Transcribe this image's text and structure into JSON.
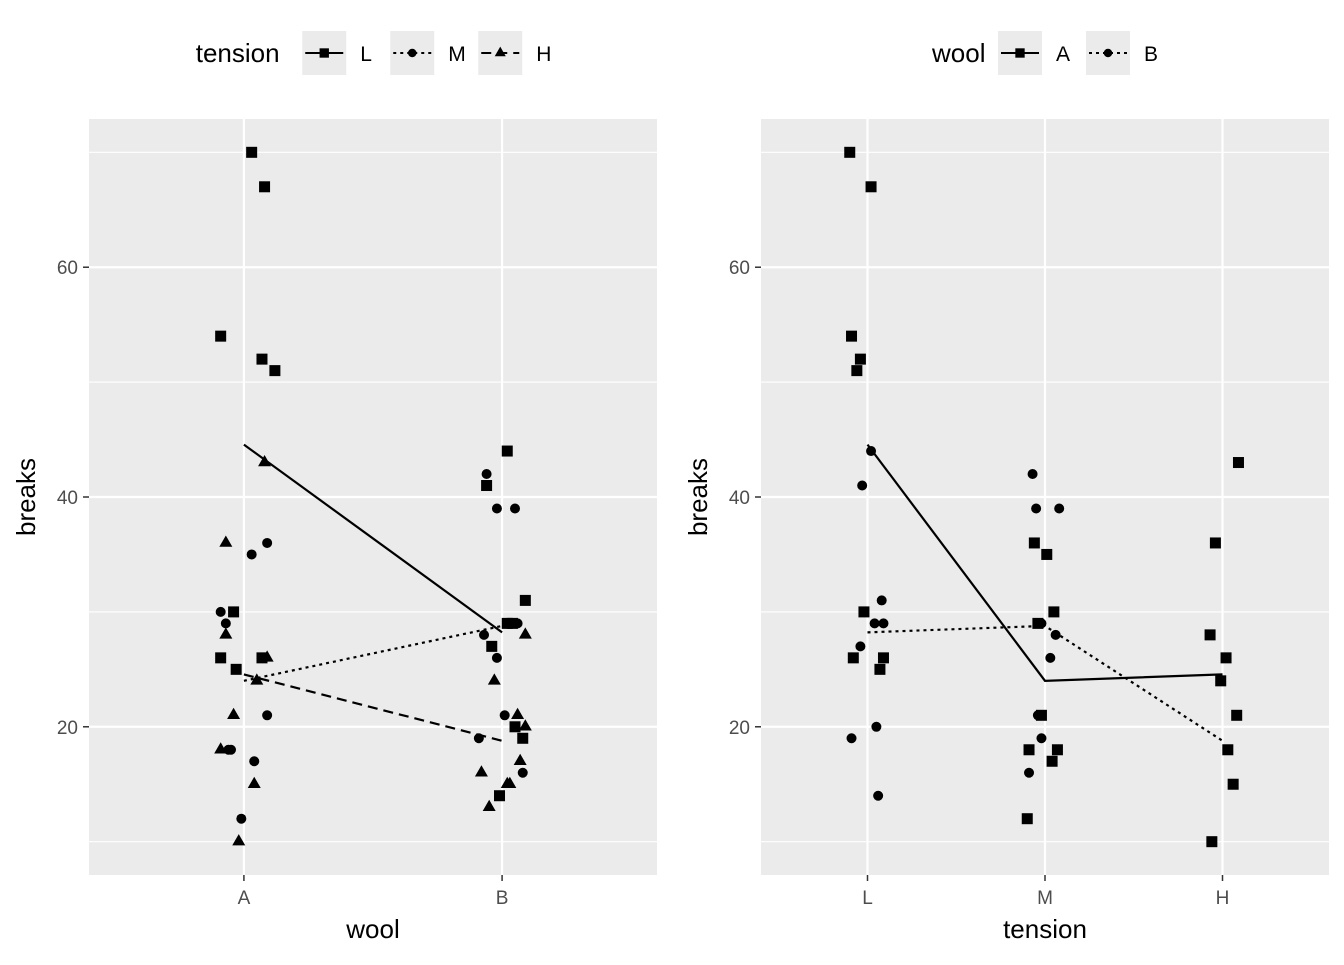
{
  "chart_data": [
    {
      "type": "scatter",
      "title": "",
      "xlabel": "wool",
      "ylabel": "breaks",
      "categories": [
        "A",
        "B"
      ],
      "ylim": [
        7.1,
        72.9
      ],
      "yticks": [
        20,
        40,
        60
      ],
      "grid": true,
      "legend": {
        "title": "tension",
        "placement": "top",
        "entries": [
          "L",
          "M",
          "H"
        ]
      },
      "series": [
        {
          "name": "L",
          "marker": "square",
          "linestyle": "solid",
          "means": [
            44.56,
            28.22
          ],
          "points": [
            {
              "x": "A",
              "dx": -0.09,
              "y": 26
            },
            {
              "x": "A",
              "dx": -0.04,
              "y": 30
            },
            {
              "x": "A",
              "dx": -0.09,
              "y": 54
            },
            {
              "x": "A",
              "dx": -0.03,
              "y": 25
            },
            {
              "x": "A",
              "dx": 0.03,
              "y": 70
            },
            {
              "x": "A",
              "dx": 0.07,
              "y": 52
            },
            {
              "x": "A",
              "dx": 0.12,
              "y": 51
            },
            {
              "x": "A",
              "dx": 0.07,
              "y": 26
            },
            {
              "x": "A",
              "dx": 0.08,
              "y": 67
            },
            {
              "x": "B",
              "dx": -0.04,
              "y": 27
            },
            {
              "x": "B",
              "dx": -0.01,
              "y": 14
            },
            {
              "x": "B",
              "dx": 0.04,
              "y": 29
            },
            {
              "x": "B",
              "dx": 0.08,
              "y": 19
            },
            {
              "x": "B",
              "dx": 0.02,
              "y": 29
            },
            {
              "x": "B",
              "dx": 0.09,
              "y": 31
            },
            {
              "x": "B",
              "dx": -0.06,
              "y": 41
            },
            {
              "x": "B",
              "dx": 0.05,
              "y": 20
            },
            {
              "x": "B",
              "dx": 0.02,
              "y": 44
            }
          ]
        },
        {
          "name": "M",
          "marker": "circle",
          "linestyle": "dotted",
          "means": [
            24.0,
            28.78
          ],
          "points": [
            {
              "x": "A",
              "dx": -0.05,
              "y": 18
            },
            {
              "x": "A",
              "dx": 0.09,
              "y": 21
            },
            {
              "x": "A",
              "dx": -0.07,
              "y": 29
            },
            {
              "x": "A",
              "dx": 0.04,
              "y": 17
            },
            {
              "x": "A",
              "dx": -0.01,
              "y": 12
            },
            {
              "x": "A",
              "dx": -0.06,
              "y": 18
            },
            {
              "x": "A",
              "dx": 0.03,
              "y": 35
            },
            {
              "x": "A",
              "dx": -0.09,
              "y": 30
            },
            {
              "x": "A",
              "dx": 0.09,
              "y": 36
            },
            {
              "x": "B",
              "dx": -0.06,
              "y": 42
            },
            {
              "x": "B",
              "dx": -0.02,
              "y": 26
            },
            {
              "x": "B",
              "dx": -0.09,
              "y": 19
            },
            {
              "x": "B",
              "dx": 0.08,
              "y": 16
            },
            {
              "x": "B",
              "dx": -0.02,
              "y": 39
            },
            {
              "x": "B",
              "dx": -0.07,
              "y": 28
            },
            {
              "x": "B",
              "dx": 0.01,
              "y": 21
            },
            {
              "x": "B",
              "dx": 0.05,
              "y": 39
            },
            {
              "x": "B",
              "dx": 0.06,
              "y": 29
            }
          ]
        },
        {
          "name": "H",
          "marker": "triangle",
          "linestyle": "dashed",
          "means": [
            24.56,
            18.78
          ],
          "points": [
            {
              "x": "A",
              "dx": -0.07,
              "y": 36
            },
            {
              "x": "A",
              "dx": -0.04,
              "y": 21
            },
            {
              "x": "A",
              "dx": 0.05,
              "y": 24
            },
            {
              "x": "A",
              "dx": -0.09,
              "y": 18
            },
            {
              "x": "A",
              "dx": -0.02,
              "y": 10
            },
            {
              "x": "A",
              "dx": 0.08,
              "y": 43
            },
            {
              "x": "A",
              "dx": -0.07,
              "y": 28
            },
            {
              "x": "A",
              "dx": 0.04,
              "y": 15
            },
            {
              "x": "A",
              "dx": 0.09,
              "y": 26
            },
            {
              "x": "B",
              "dx": 0.09,
              "y": 20
            },
            {
              "x": "B",
              "dx": 0.06,
              "y": 21
            },
            {
              "x": "B",
              "dx": -0.03,
              "y": 24
            },
            {
              "x": "B",
              "dx": 0.07,
              "y": 17
            },
            {
              "x": "B",
              "dx": -0.05,
              "y": 13
            },
            {
              "x": "B",
              "dx": 0.03,
              "y": 15
            },
            {
              "x": "B",
              "dx": 0.02,
              "y": 15
            },
            {
              "x": "B",
              "dx": -0.08,
              "y": 16
            },
            {
              "x": "B",
              "dx": 0.09,
              "y": 28
            }
          ]
        }
      ]
    },
    {
      "type": "scatter",
      "title": "",
      "xlabel": "tension",
      "ylabel": "breaks",
      "categories": [
        "L",
        "M",
        "H"
      ],
      "ylim": [
        7.1,
        72.9
      ],
      "yticks": [
        20,
        40,
        60
      ],
      "grid": true,
      "legend": {
        "title": "wool",
        "placement": "top",
        "entries": [
          "A",
          "B"
        ]
      },
      "series": [
        {
          "name": "A",
          "marker": "square",
          "linestyle": "solid",
          "means": [
            44.56,
            24.0,
            24.56
          ],
          "points": [
            {
              "x": "L",
              "dx": -0.08,
              "y": 26
            },
            {
              "x": "L",
              "dx": -0.02,
              "y": 30
            },
            {
              "x": "L",
              "dx": -0.09,
              "y": 54
            },
            {
              "x": "L",
              "dx": 0.07,
              "y": 25
            },
            {
              "x": "L",
              "dx": -0.1,
              "y": 70
            },
            {
              "x": "L",
              "dx": -0.04,
              "y": 52
            },
            {
              "x": "L",
              "dx": -0.06,
              "y": 51
            },
            {
              "x": "L",
              "dx": 0.09,
              "y": 26
            },
            {
              "x": "L",
              "dx": 0.02,
              "y": 67
            },
            {
              "x": "M",
              "dx": -0.09,
              "y": 18
            },
            {
              "x": "M",
              "dx": -0.02,
              "y": 21
            },
            {
              "x": "M",
              "dx": -0.04,
              "y": 29
            },
            {
              "x": "M",
              "dx": 0.04,
              "y": 17
            },
            {
              "x": "M",
              "dx": -0.1,
              "y": 12
            },
            {
              "x": "M",
              "dx": 0.07,
              "y": 18
            },
            {
              "x": "M",
              "dx": 0.01,
              "y": 35
            },
            {
              "x": "M",
              "dx": 0.05,
              "y": 30
            },
            {
              "x": "M",
              "dx": -0.06,
              "y": 36
            },
            {
              "x": "H",
              "dx": -0.04,
              "y": 36
            },
            {
              "x": "H",
              "dx": 0.08,
              "y": 21
            },
            {
              "x": "H",
              "dx": -0.01,
              "y": 24
            },
            {
              "x": "H",
              "dx": 0.03,
              "y": 18
            },
            {
              "x": "H",
              "dx": -0.06,
              "y": 10
            },
            {
              "x": "H",
              "dx": 0.09,
              "y": 43
            },
            {
              "x": "H",
              "dx": -0.07,
              "y": 28
            },
            {
              "x": "H",
              "dx": 0.06,
              "y": 15
            },
            {
              "x": "H",
              "dx": 0.02,
              "y": 26
            }
          ]
        },
        {
          "name": "B",
          "marker": "circle",
          "linestyle": "dotted",
          "means": [
            28.22,
            28.78,
            18.78
          ],
          "points": [
            {
              "x": "L",
              "dx": -0.04,
              "y": 27
            },
            {
              "x": "L",
              "dx": 0.06,
              "y": 14
            },
            {
              "x": "L",
              "dx": 0.09,
              "y": 29
            },
            {
              "x": "L",
              "dx": -0.09,
              "y": 19
            },
            {
              "x": "L",
              "dx": 0.04,
              "y": 29
            },
            {
              "x": "L",
              "dx": 0.08,
              "y": 31
            },
            {
              "x": "L",
              "dx": -0.03,
              "y": 41
            },
            {
              "x": "L",
              "dx": 0.05,
              "y": 20
            },
            {
              "x": "L",
              "dx": 0.02,
              "y": 44
            },
            {
              "x": "M",
              "dx": -0.07,
              "y": 42
            },
            {
              "x": "M",
              "dx": 0.03,
              "y": 26
            },
            {
              "x": "M",
              "dx": -0.02,
              "y": 19
            },
            {
              "x": "M",
              "dx": -0.09,
              "y": 16
            },
            {
              "x": "M",
              "dx": 0.08,
              "y": 39
            },
            {
              "x": "M",
              "dx": 0.06,
              "y": 28
            },
            {
              "x": "M",
              "dx": -0.04,
              "y": 21
            },
            {
              "x": "M",
              "dx": -0.05,
              "y": 39
            },
            {
              "x": "M",
              "dx": -0.02,
              "y": 29
            }
          ]
        }
      ]
    }
  ]
}
